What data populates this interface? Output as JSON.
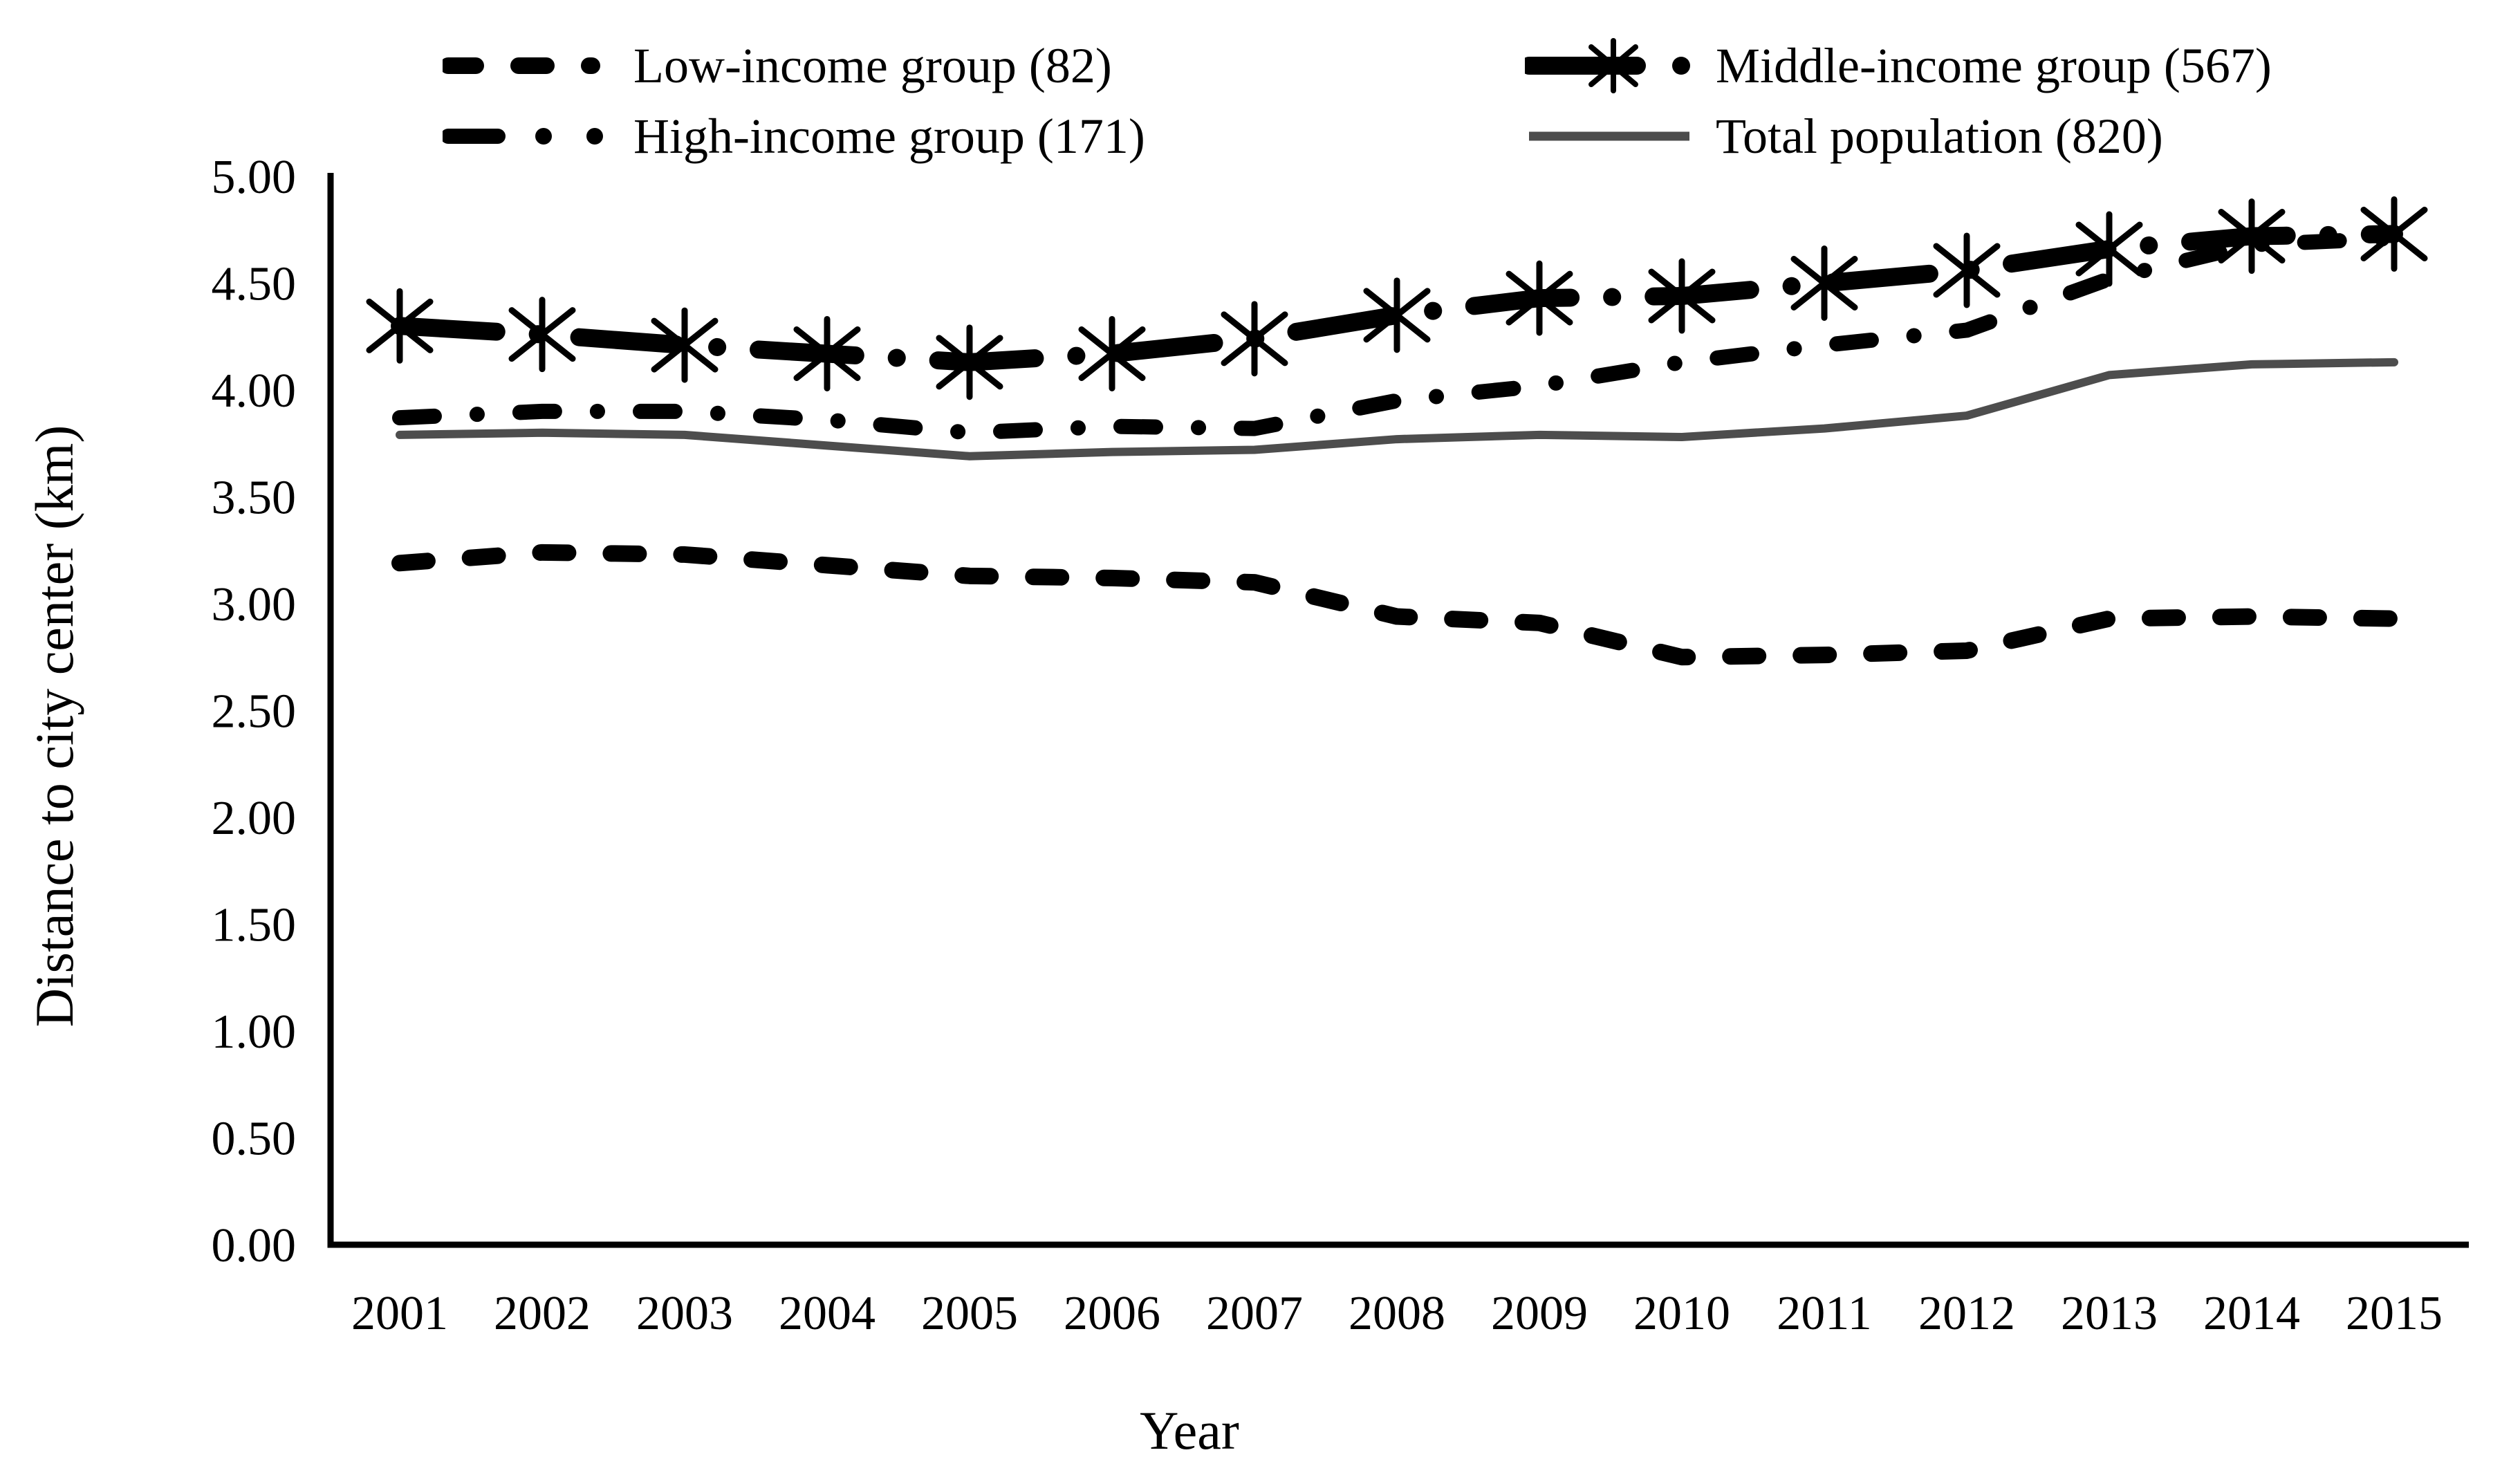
{
  "figure": {
    "background": "#ffffff",
    "axis_color": "#000000",
    "black": "#000000",
    "gray": "#4d4d4d"
  },
  "legend": {
    "items": [
      {
        "id": "low-income",
        "label": "Low-income group (82)"
      },
      {
        "id": "high-income",
        "label": "High-income group (171)"
      },
      {
        "id": "middle-income",
        "label": "Middle-income group (567)"
      },
      {
        "id": "total",
        "label": "Total population (820)"
      }
    ]
  },
  "chart_data": {
    "type": "line",
    "title": "",
    "xlabel": "Year",
    "ylabel": "Distance to city center (km)",
    "x": [
      2001,
      2002,
      2003,
      2004,
      2005,
      2006,
      2007,
      2008,
      2009,
      2010,
      2011,
      2012,
      2013,
      2014,
      2015
    ],
    "xtick_labels": [
      "2001",
      "2002",
      "2003",
      "2004",
      "2005",
      "2006",
      "2007",
      "2008",
      "2009",
      "2010",
      "2011",
      "2012",
      "2013",
      "2014",
      "2015"
    ],
    "ylim": [
      0,
      5
    ],
    "ytick_step": 0.5,
    "yticks": [
      "0.00",
      "0.50",
      "1.00",
      "1.50",
      "2.00",
      "2.50",
      "3.00",
      "3.50",
      "4.00",
      "4.50",
      "5.00"
    ],
    "grid": false,
    "legend_position": "top",
    "series": [
      {
        "name": "Low-income group (82)",
        "style": "thick-dashed",
        "marker": "none",
        "color": "#000000",
        "values": [
          3.19,
          3.24,
          3.23,
          3.18,
          3.13,
          3.12,
          3.1,
          2.94,
          2.91,
          2.75,
          2.76,
          2.78,
          2.93,
          2.94,
          2.93
        ]
      },
      {
        "name": "Middle-income group (567)",
        "style": "thick-dash-dot",
        "marker": "asterisk",
        "color": "#000000",
        "values": [
          4.3,
          4.26,
          4.21,
          4.17,
          4.13,
          4.17,
          4.24,
          4.35,
          4.43,
          4.44,
          4.5,
          4.56,
          4.66,
          4.72,
          4.73
        ]
      },
      {
        "name": "High-income group (171)",
        "style": "dash-dot",
        "marker": "none",
        "color": "#000000",
        "values": [
          3.87,
          3.9,
          3.9,
          3.86,
          3.8,
          3.83,
          3.82,
          3.95,
          4.02,
          4.13,
          4.21,
          4.28,
          4.52,
          4.68,
          4.71
        ]
      },
      {
        "name": "Total population (820)",
        "style": "solid",
        "marker": "none",
        "color": "#4d4d4d",
        "values": [
          3.79,
          3.8,
          3.79,
          3.74,
          3.69,
          3.71,
          3.72,
          3.77,
          3.79,
          3.78,
          3.82,
          3.88,
          4.07,
          4.12,
          4.13
        ]
      }
    ]
  }
}
